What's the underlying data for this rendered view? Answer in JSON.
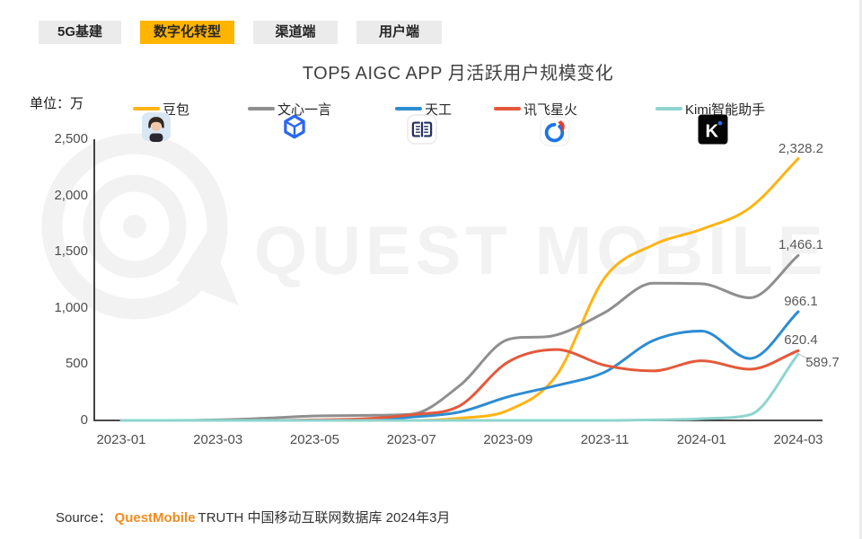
{
  "tabs": {
    "selected_index": 1,
    "items": [
      {
        "label": "5G基建"
      },
      {
        "label": "数字化转型"
      },
      {
        "label": "渠道端"
      },
      {
        "label": "用户端"
      }
    ]
  },
  "title": "TOP5 AIGC APP 月活跃用户规模变化",
  "unit_label": "单位：万",
  "watermark": "QUEST MOBILE",
  "source": {
    "prefix": "Source：",
    "brand": "QuestMobile",
    "suffix": "TRUTH 中国移动互联网数据库 2024年3月"
  },
  "chart_data": {
    "type": "line",
    "smooth": true,
    "title": "TOP5 AIGC APP 月活跃用户规模变化",
    "unit": "万",
    "ylim": [
      0,
      2500
    ],
    "grid": false,
    "legend_position": "top",
    "x": [
      "2023-01",
      "2023-02",
      "2023-03",
      "2023-04",
      "2023-05",
      "2023-06",
      "2023-07",
      "2023-08",
      "2023-09",
      "2023-10",
      "2023-11",
      "2023-12",
      "2024-01",
      "2024-02",
      "2024-03"
    ],
    "x_tick_labels": [
      "2023-01",
      "2023-03",
      "2023-05",
      "2023-07",
      "2023-09",
      "2023-11",
      "2024-01",
      "2024-03"
    ],
    "y_ticks": [
      {
        "value": 0,
        "label": "0"
      },
      {
        "value": 500,
        "label": "500"
      },
      {
        "value": 1000,
        "label": "1,000"
      },
      {
        "value": 1500,
        "label": "1,500"
      },
      {
        "value": 2000,
        "label": "2,000"
      },
      {
        "value": 2500,
        "label": "2,500"
      }
    ],
    "series": [
      {
        "name": "豆包",
        "icon": "doubao-app-icon",
        "color": "#FFB414",
        "end_label": "2,328.2",
        "values": [
          0,
          0,
          0,
          0,
          0,
          0,
          0,
          20,
          90,
          400,
          1270,
          1560,
          1700,
          1890,
          2328.2
        ]
      },
      {
        "name": "文心一言",
        "icon": "wenxin-app-icon",
        "color": "#8F8F8F",
        "end_label": "1,466.1",
        "values": [
          0,
          0,
          5,
          20,
          40,
          45,
          55,
          310,
          720,
          760,
          960,
          1220,
          1215,
          1090,
          1466.1
        ]
      },
      {
        "name": "天工",
        "icon": "tiangong-app-icon",
        "color": "#2D8CD2",
        "end_label": "966.1",
        "values": [
          0,
          0,
          0,
          0,
          0,
          5,
          30,
          75,
          210,
          310,
          430,
          710,
          795,
          550,
          966.1
        ]
      },
      {
        "name": "讯飞星火",
        "icon": "xunfei-app-icon",
        "color": "#E4593B",
        "end_label": "620.4",
        "values": [
          0,
          0,
          0,
          0,
          5,
          15,
          50,
          130,
          520,
          630,
          490,
          440,
          530,
          455,
          620.4
        ]
      },
      {
        "name": "Kimi智能助手",
        "icon": "kimi-app-icon",
        "color": "#8FD4CF",
        "end_label": "589.7",
        "values": [
          0,
          0,
          0,
          0,
          0,
          0,
          0,
          0,
          0,
          0,
          0,
          5,
          15,
          50,
          589.7
        ]
      }
    ]
  }
}
